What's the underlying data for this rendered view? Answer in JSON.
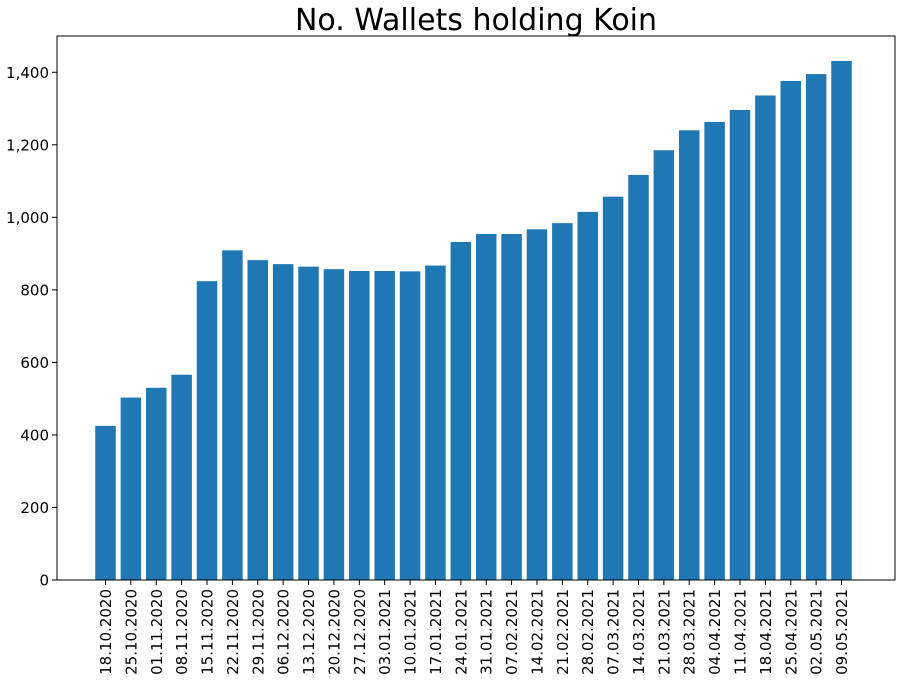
{
  "colors": {
    "bar": "#1f77b4",
    "axis": "#000000",
    "background": "#ffffff"
  },
  "chart_data": {
    "type": "bar",
    "title": "No. Wallets holding Koin",
    "xlabel": "",
    "ylabel": "",
    "ylim": [
      0,
      1500
    ],
    "yticks": [
      0,
      200,
      400,
      600,
      800,
      1000,
      1200,
      1400
    ],
    "ytick_labels": [
      "0",
      "200",
      "400",
      "600",
      "800",
      "1,000",
      "1,200",
      "1,400"
    ],
    "grid": false,
    "legend": "none",
    "categories": [
      "18.10.2020",
      "25.10.2020",
      "01.11.2020",
      "08.11.2020",
      "15.11.2020",
      "22.11.2020",
      "29.11.2020",
      "06.12.2020",
      "13.12.2020",
      "20.12.2020",
      "27.12.2020",
      "03.01.2021",
      "10.01.2021",
      "17.01.2021",
      "24.01.2021",
      "31.01.2021",
      "07.02.2021",
      "14.02.2021",
      "21.02.2021",
      "28.02.2021",
      "07.03.2021",
      "14.03.2021",
      "21.03.2021",
      "28.03.2021",
      "04.04.2021",
      "11.04.2021",
      "18.04.2021",
      "25.04.2021",
      "02.05.2021",
      "09.05.2021"
    ],
    "values": [
      425,
      503,
      530,
      566,
      824,
      909,
      882,
      871,
      864,
      857,
      852,
      852,
      851,
      867,
      932,
      954,
      954,
      967,
      984,
      1015,
      1057,
      1117,
      1185,
      1240,
      1263,
      1296,
      1336,
      1376,
      1395,
      1431
    ]
  }
}
